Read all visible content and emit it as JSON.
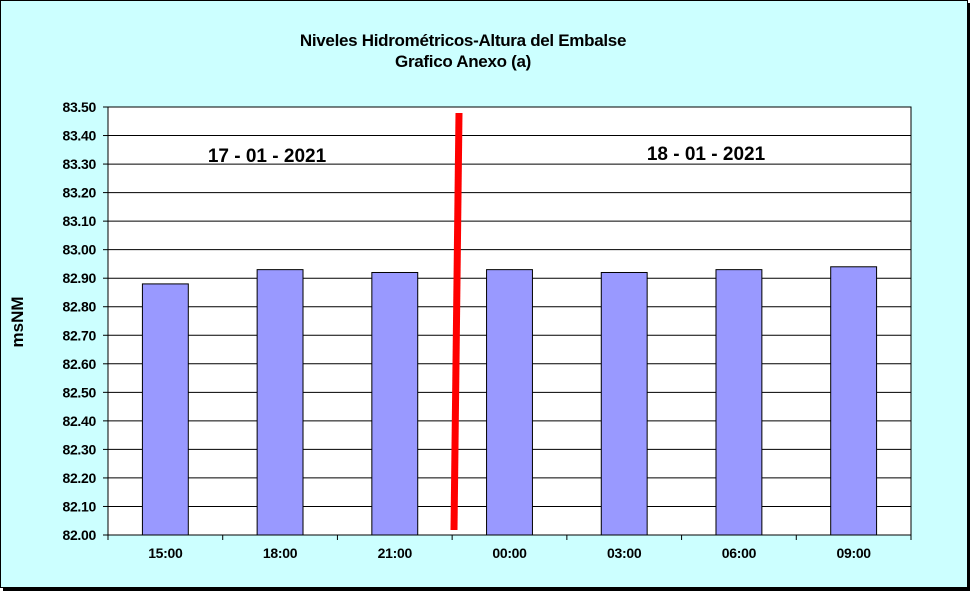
{
  "chart_data": {
    "type": "bar",
    "title": "Niveles Hidrométricos-Altura del Embalse",
    "subtitle": "Grafico Anexo (a)",
    "ylabel": "msNM",
    "xlabel": "",
    "categories": [
      "15:00",
      "18:00",
      "21:00",
      "00:00",
      "03:00",
      "06:00",
      "09:00"
    ],
    "values": [
      82.88,
      82.93,
      82.92,
      82.93,
      82.92,
      82.93,
      82.94
    ],
    "ylim": [
      82.0,
      83.5
    ],
    "yticks": [
      "82.00",
      "82.10",
      "82.20",
      "82.30",
      "82.40",
      "82.50",
      "82.60",
      "82.70",
      "82.80",
      "82.90",
      "83.00",
      "83.10",
      "83.20",
      "83.30",
      "83.40",
      "83.50"
    ],
    "grid": true,
    "legend": "none",
    "annotations": {
      "date_left": "17 - 01 - 2021",
      "date_right": "18 - 01 - 2021"
    },
    "colors": {
      "bar": "#9999ff",
      "divider": "#ff0000",
      "background": "#ccffff",
      "plot_area": "#ffffff"
    }
  }
}
